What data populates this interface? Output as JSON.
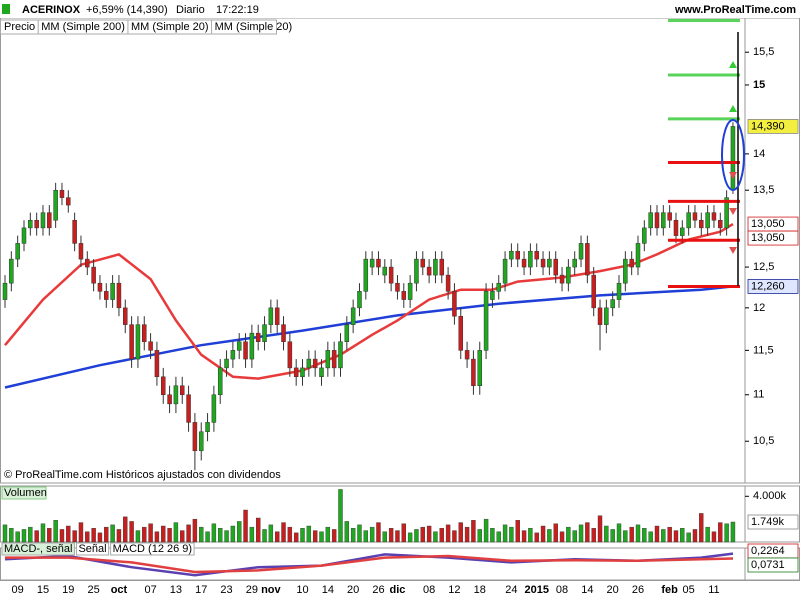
{
  "header": {
    "symbol": "ACERINOX",
    "change": "+6,59% (14,390)",
    "period": "Diario",
    "time": "17:22:19",
    "site": "www.ProRealTime.com"
  },
  "chart_data": [
    {
      "type": "candlestick",
      "name": "Precio",
      "footnote": "© ProRealTime.com  Históricos ajustados con dividendos",
      "legend": [
        {
          "label": "MM (Simple 200)",
          "color": "#1f3fd6"
        },
        {
          "label": "MM (Simple 20)",
          "color": "#e83a3a"
        },
        {
          "label": "MM (Simple 20)",
          "color": "#e83a3a"
        }
      ],
      "up_color": "#1fa81f",
      "down_color": "#c81e1e",
      "log_scale": true,
      "ylim": [
        10.07,
        16.04
      ],
      "yticks": [
        {
          "value": 10.5,
          "label": "10,5"
        },
        11,
        {
          "value": 11.5,
          "label": "11,5"
        },
        12,
        {
          "value": 12.5,
          "label": "12,5"
        },
        {
          "value": 13.5,
          "label": "13,5"
        },
        14,
        15,
        {
          "value": 15.5,
          "label": "15,5"
        }
      ],
      "categories": [
        null,
        null,
        "09",
        null,
        null,
        null,
        "15",
        null,
        null,
        null,
        "19",
        null,
        null,
        null,
        "25",
        null,
        null,
        null,
        "oct",
        null,
        null,
        null,
        null,
        "07",
        null,
        null,
        null,
        "13",
        null,
        null,
        null,
        "17",
        null,
        null,
        null,
        "23",
        null,
        null,
        null,
        "29",
        null,
        null,
        "nov",
        null,
        null,
        null,
        null,
        "10",
        null,
        null,
        null,
        "14",
        null,
        null,
        null,
        "20",
        null,
        null,
        null,
        "26",
        null,
        null,
        "dic",
        null,
        null,
        null,
        null,
        "08",
        null,
        null,
        null,
        "12",
        null,
        null,
        null,
        "18",
        null,
        null,
        null,
        null,
        "24",
        null,
        null,
        null,
        "2015",
        null,
        null,
        null,
        "08",
        null,
        null,
        null,
        "14",
        null,
        null,
        null,
        "20",
        null,
        null,
        null,
        "26",
        null,
        null,
        null,
        null,
        "feb",
        null,
        null,
        "05",
        null,
        null,
        null,
        "11",
        null,
        null,
        null
      ],
      "candles": [
        [
          12.1,
          12.4,
          12.0,
          12.3
        ],
        [
          12.3,
          12.7,
          12.2,
          12.6
        ],
        [
          12.6,
          12.9,
          12.5,
          12.8
        ],
        [
          12.8,
          13.1,
          12.7,
          13.0
        ],
        [
          13.0,
          13.2,
          12.9,
          13.1
        ],
        [
          13.1,
          13.2,
          12.9,
          13.0
        ],
        [
          13.0,
          13.3,
          12.9,
          13.2
        ],
        [
          13.2,
          13.3,
          12.9,
          13.0
        ],
        [
          13.1,
          13.6,
          13.0,
          13.5
        ],
        [
          13.5,
          13.6,
          13.3,
          13.4
        ],
        [
          13.4,
          13.5,
          13.2,
          13.3
        ],
        [
          13.1,
          13.2,
          12.7,
          12.8
        ],
        [
          12.8,
          12.9,
          12.5,
          12.6
        ],
        [
          12.6,
          12.7,
          12.4,
          12.5
        ],
        [
          12.5,
          12.6,
          12.2,
          12.3
        ],
        [
          12.3,
          12.4,
          12.1,
          12.2
        ],
        [
          12.2,
          12.3,
          12.0,
          12.1
        ],
        [
          12.1,
          12.4,
          12.0,
          12.3
        ],
        [
          12.3,
          12.4,
          11.9,
          12.0
        ],
        [
          12.0,
          12.1,
          11.7,
          11.8
        ],
        [
          11.8,
          11.9,
          11.3,
          11.4
        ],
        [
          11.4,
          11.9,
          11.3,
          11.8
        ],
        [
          11.8,
          11.9,
          11.5,
          11.6
        ],
        [
          11.6,
          11.7,
          11.4,
          11.5
        ],
        [
          11.5,
          11.6,
          11.1,
          11.2
        ],
        [
          11.2,
          11.3,
          10.9,
          11.0
        ],
        [
          11.0,
          11.1,
          10.8,
          10.9
        ],
        [
          10.9,
          11.2,
          10.8,
          11.1
        ],
        [
          11.1,
          11.2,
          10.9,
          11.0
        ],
        [
          11.0,
          11.1,
          10.6,
          10.7
        ],
        [
          10.7,
          10.8,
          10.2,
          10.4
        ],
        [
          10.4,
          10.7,
          10.3,
          10.6
        ],
        [
          10.6,
          10.8,
          10.5,
          10.7
        ],
        [
          10.7,
          11.1,
          10.6,
          11.0
        ],
        [
          11.0,
          11.4,
          10.9,
          11.3
        ],
        [
          11.3,
          11.5,
          11.2,
          11.4
        ],
        [
          11.4,
          11.6,
          11.3,
          11.5
        ],
        [
          11.5,
          11.7,
          11.4,
          11.6
        ],
        [
          11.6,
          11.7,
          11.3,
          11.4
        ],
        [
          11.4,
          11.8,
          11.3,
          11.7
        ],
        [
          11.7,
          11.8,
          11.5,
          11.6
        ],
        [
          11.6,
          11.9,
          11.5,
          11.8
        ],
        [
          11.8,
          12.1,
          11.7,
          12.0
        ],
        [
          12.0,
          12.1,
          11.7,
          11.8
        ],
        [
          11.8,
          11.9,
          11.5,
          11.6
        ],
        [
          11.6,
          11.7,
          11.2,
          11.3
        ],
        [
          11.3,
          11.4,
          11.1,
          11.2
        ],
        [
          11.2,
          11.4,
          11.1,
          11.3
        ],
        [
          11.3,
          11.5,
          11.2,
          11.4
        ],
        [
          11.4,
          11.5,
          11.2,
          11.3
        ],
        [
          11.2,
          11.4,
          11.1,
          11.3
        ],
        [
          11.3,
          11.6,
          11.2,
          11.5
        ],
        [
          11.5,
          11.6,
          11.2,
          11.3
        ],
        [
          11.3,
          11.7,
          11.2,
          11.6
        ],
        [
          11.6,
          11.9,
          11.5,
          11.8
        ],
        [
          11.8,
          12.1,
          11.7,
          12.0
        ],
        [
          12.0,
          12.3,
          11.9,
          12.2
        ],
        [
          12.2,
          12.7,
          12.1,
          12.6
        ],
        [
          12.5,
          12.7,
          12.4,
          12.6
        ],
        [
          12.6,
          12.7,
          12.4,
          12.5
        ],
        [
          12.4,
          12.6,
          12.3,
          12.5
        ],
        [
          12.5,
          12.6,
          12.2,
          12.3
        ],
        [
          12.3,
          12.4,
          12.1,
          12.2
        ],
        [
          12.2,
          12.3,
          12.0,
          12.1
        ],
        [
          12.1,
          12.4,
          12.0,
          12.3
        ],
        [
          12.3,
          12.7,
          12.2,
          12.6
        ],
        [
          12.6,
          12.7,
          12.4,
          12.5
        ],
        [
          12.5,
          12.6,
          12.3,
          12.4
        ],
        [
          12.4,
          12.7,
          12.3,
          12.6
        ],
        [
          12.6,
          12.7,
          12.3,
          12.4
        ],
        [
          12.4,
          12.5,
          12.1,
          12.2
        ],
        [
          12.2,
          12.3,
          11.8,
          11.9
        ],
        [
          11.9,
          12.0,
          11.4,
          11.5
        ],
        [
          11.5,
          11.6,
          11.3,
          11.4
        ],
        [
          11.4,
          11.5,
          11.0,
          11.1
        ],
        [
          11.1,
          11.6,
          11.0,
          11.5
        ],
        [
          11.5,
          12.3,
          11.4,
          12.2
        ],
        [
          12.1,
          12.3,
          12.0,
          12.2
        ],
        [
          12.2,
          12.4,
          12.1,
          12.3
        ],
        [
          12.3,
          12.7,
          12.2,
          12.6
        ],
        [
          12.6,
          12.8,
          12.5,
          12.7
        ],
        [
          12.7,
          12.8,
          12.5,
          12.6
        ],
        [
          12.6,
          12.7,
          12.4,
          12.5
        ],
        [
          12.5,
          12.8,
          12.4,
          12.7
        ],
        [
          12.7,
          12.8,
          12.5,
          12.6
        ],
        [
          12.6,
          12.7,
          12.4,
          12.5
        ],
        [
          12.5,
          12.7,
          12.4,
          12.6
        ],
        [
          12.6,
          12.7,
          12.3,
          12.4
        ],
        [
          12.4,
          12.5,
          12.2,
          12.3
        ],
        [
          12.3,
          12.6,
          12.2,
          12.5
        ],
        [
          12.5,
          12.7,
          12.4,
          12.6
        ],
        [
          12.6,
          12.9,
          12.5,
          12.8
        ],
        [
          12.8,
          12.9,
          12.3,
          12.4
        ],
        [
          12.4,
          12.5,
          11.9,
          12.0
        ],
        [
          12.0,
          12.1,
          11.5,
          11.8
        ],
        [
          11.8,
          12.1,
          11.7,
          12.0
        ],
        [
          12.0,
          12.2,
          11.9,
          12.1
        ],
        [
          12.1,
          12.4,
          12.0,
          12.3
        ],
        [
          12.3,
          12.7,
          12.2,
          12.6
        ],
        [
          12.6,
          12.7,
          12.4,
          12.5
        ],
        [
          12.5,
          12.9,
          12.4,
          12.8
        ],
        [
          12.8,
          13.1,
          12.7,
          13.0
        ],
        [
          13.0,
          13.3,
          12.9,
          13.2
        ],
        [
          13.2,
          13.3,
          12.9,
          13.0
        ],
        [
          13.0,
          13.3,
          12.9,
          13.2
        ],
        [
          13.2,
          13.3,
          13.0,
          13.1
        ],
        [
          13.1,
          13.2,
          12.8,
          12.9
        ],
        [
          12.9,
          13.1,
          12.8,
          13.0
        ],
        [
          13.0,
          13.3,
          12.9,
          13.2
        ],
        [
          13.2,
          13.3,
          13.0,
          13.1
        ],
        [
          13.1,
          13.2,
          12.9,
          13.0
        ],
        [
          13.0,
          13.3,
          12.9,
          13.2
        ],
        [
          13.2,
          13.3,
          13.0,
          13.1
        ],
        [
          13.1,
          13.2,
          12.9,
          13.0
        ],
        [
          13.0,
          13.5,
          12.9,
          13.4
        ],
        [
          13.5,
          14.45,
          13.45,
          14.39
        ]
      ],
      "overlays": [
        {
          "color": "#1f3fd6",
          "x": [
            0,
            15,
            31,
            47,
            62,
            78,
            94,
            110,
            115
          ],
          "values": [
            11.08,
            11.33,
            11.56,
            11.73,
            11.91,
            12.05,
            12.15,
            12.22,
            12.26
          ]
        },
        {
          "color": "#e83a3a",
          "x": [
            0,
            6,
            12,
            18,
            23,
            27,
            31,
            36,
            40,
            47,
            53,
            58,
            62,
            67,
            72,
            77,
            81,
            88,
            94,
            99,
            103,
            108,
            113,
            115
          ],
          "values": [
            11.56,
            12.1,
            12.53,
            12.66,
            12.35,
            11.85,
            11.45,
            11.2,
            11.18,
            11.27,
            11.45,
            11.68,
            11.85,
            12.1,
            12.22,
            12.22,
            12.32,
            12.37,
            12.45,
            12.53,
            12.66,
            12.85,
            12.95,
            13.05
          ]
        }
      ],
      "levels": [
        {
          "value": 16.0,
          "color": "#5ad35a"
        },
        {
          "value": 15.15,
          "color": "#5ad35a"
        },
        {
          "value": 14.5,
          "color": "#5ad35a"
        },
        {
          "value": 13.88,
          "color": "#e81010"
        },
        {
          "value": 13.35,
          "color": "#e81010"
        },
        {
          "value": 12.84,
          "color": "#e81010"
        },
        {
          "value": 12.26,
          "color": "#e81010"
        }
      ],
      "price_tags": [
        {
          "value": 14.39,
          "label": "14,390",
          "color": "#000000",
          "bg": "#f2ef40"
        },
        {
          "value": 13.05,
          "label": "13,050",
          "color": "#d01818",
          "bg": "#ffffff"
        },
        {
          "value": 13.05,
          "label": "13,050",
          "color": "#d01818",
          "bg": "#ffffff"
        },
        {
          "value": 12.26,
          "label": "12,260",
          "color": "#1a2a9a",
          "bg": "#dfe6ff"
        }
      ]
    },
    {
      "type": "bar",
      "title": "Volumen",
      "values": [
        1500,
        1200,
        900,
        1100,
        1300,
        1000,
        1600,
        1200,
        1900,
        1100,
        1400,
        1000,
        1700,
        900,
        1200,
        800,
        1300,
        1500,
        1100,
        2200,
        1800,
        1000,
        1300,
        1600,
        900,
        1400,
        1200,
        1700,
        1000,
        1500,
        2000,
        1300,
        900,
        1600,
        1200,
        1000,
        1400,
        1800,
        2800,
        1300,
        2100,
        1100,
        1500,
        900,
        1700,
        1300,
        800,
        1200,
        1400,
        1000,
        900,
        1300,
        1100,
        4600,
        1800,
        1200,
        1500,
        1000,
        1300,
        1700,
        900,
        1200,
        1000,
        1600,
        800,
        1100,
        1300,
        1400,
        900,
        1200,
        1500,
        1000,
        1700,
        1300,
        1900,
        1100,
        2000,
        1200,
        900,
        1500,
        1300,
        1900,
        1000,
        1200,
        800,
        1400,
        1100,
        1600,
        900,
        1300,
        1000,
        1500,
        1700,
        1200,
        2300,
        1400,
        1100,
        1600,
        1000,
        1300,
        1500,
        1200,
        900,
        1400,
        1100,
        1300,
        1000,
        1200,
        800,
        1100,
        2500,
        1300,
        900,
        1700,
        1600,
        1749
      ],
      "ylim": [
        0,
        4900
      ],
      "yticks": [
        {
          "value": 4000,
          "label": "4.000k"
        }
      ],
      "tags": [
        {
          "value": 1749,
          "label": "1.749k",
          "color": "#000000",
          "bg": "#ffffff"
        }
      ]
    },
    {
      "type": "line",
      "labels": [
        {
          "label": "MACD-, señal",
          "color": "#5a5a5a",
          "bg": "#d8f0d8"
        },
        {
          "label": "Señal",
          "color": "#e06060",
          "bg": "#ffffff"
        },
        {
          "label": "MACD (12 26 9)",
          "color": "#3535a0",
          "bg": "#ffffff"
        }
      ],
      "ylim": [
        -0.6,
        0.4
      ],
      "series": [
        {
          "color": "#5a40b0",
          "x": [
            0,
            10,
            20,
            30,
            40,
            50,
            60,
            70,
            80,
            90,
            100,
            110,
            115
          ],
          "values": [
            0.05,
            0.15,
            -0.2,
            -0.45,
            -0.2,
            -0.15,
            0.2,
            0.1,
            -0.05,
            0.05,
            0.0,
            0.1,
            0.2264
          ]
        },
        {
          "color": "#e04040",
          "x": [
            0,
            10,
            20,
            30,
            40,
            50,
            60,
            70,
            80,
            90,
            100,
            110,
            115
          ],
          "values": [
            0.1,
            0.1,
            -0.05,
            -0.35,
            -0.3,
            -0.15,
            0.1,
            0.15,
            0.0,
            0.02,
            0.0,
            0.05,
            0.0731
          ]
        }
      ],
      "tags": [
        {
          "value": 0.2264,
          "label": "0,2264",
          "color": "#d01818",
          "bg": "#ffffff"
        },
        {
          "value": 0.0731,
          "label": "0,0731",
          "color": "#1a7a1a",
          "bg": "#ffffff"
        }
      ]
    }
  ]
}
